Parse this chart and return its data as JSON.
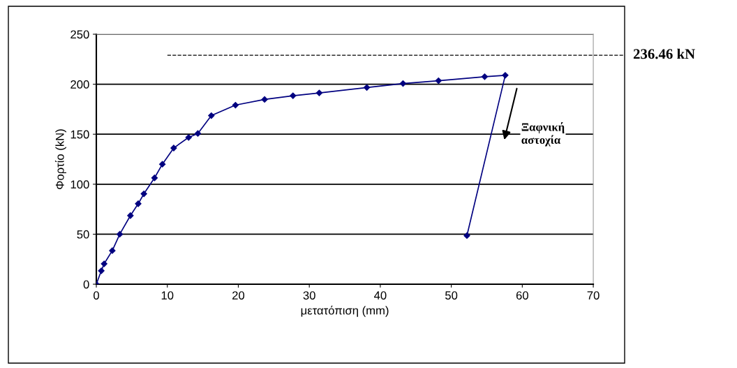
{
  "chart_data": {
    "type": "line",
    "xlabel": "μετατόπιση (mm)",
    "ylabel": "Φορτίο (kN)",
    "xlim": [
      0,
      70
    ],
    "xticks": [
      0,
      10,
      20,
      30,
      40,
      50,
      60,
      70
    ],
    "ylim": [
      0,
      250
    ],
    "yticks": [
      0,
      50,
      100,
      150,
      200,
      250
    ],
    "grid": "y",
    "marker": "diamond",
    "line_style": "solid",
    "x": [
      0,
      0.7,
      1.1,
      2.25,
      3.3,
      4.8,
      5.9,
      6.7,
      8.2,
      9.3,
      10.9,
      13.0,
      14.3,
      16.2,
      19.6,
      23.7,
      27.7,
      31.4,
      38.1,
      43.2,
      48.2,
      54.7,
      57.6,
      52.2
    ],
    "series": [
      {
        "color": "#000080",
        "values": [
          0,
          13.4,
          20.4,
          33.6,
          50,
          68.6,
          80.5,
          90.4,
          106.3,
          120,
          136.2,
          146.8,
          150.7,
          168.6,
          179.1,
          184.8,
          188.5,
          191.3,
          196.7,
          200.7,
          203.5,
          207.5,
          208.9,
          48.6
        ]
      }
    ],
    "ref_lines": [
      {
        "axis": "y",
        "value": 229,
        "label": "236.46 kN",
        "color": "#000000",
        "line_style": "dashed"
      }
    ],
    "annotations": [
      "Ξαφνική\nαστοχία"
    ]
  }
}
